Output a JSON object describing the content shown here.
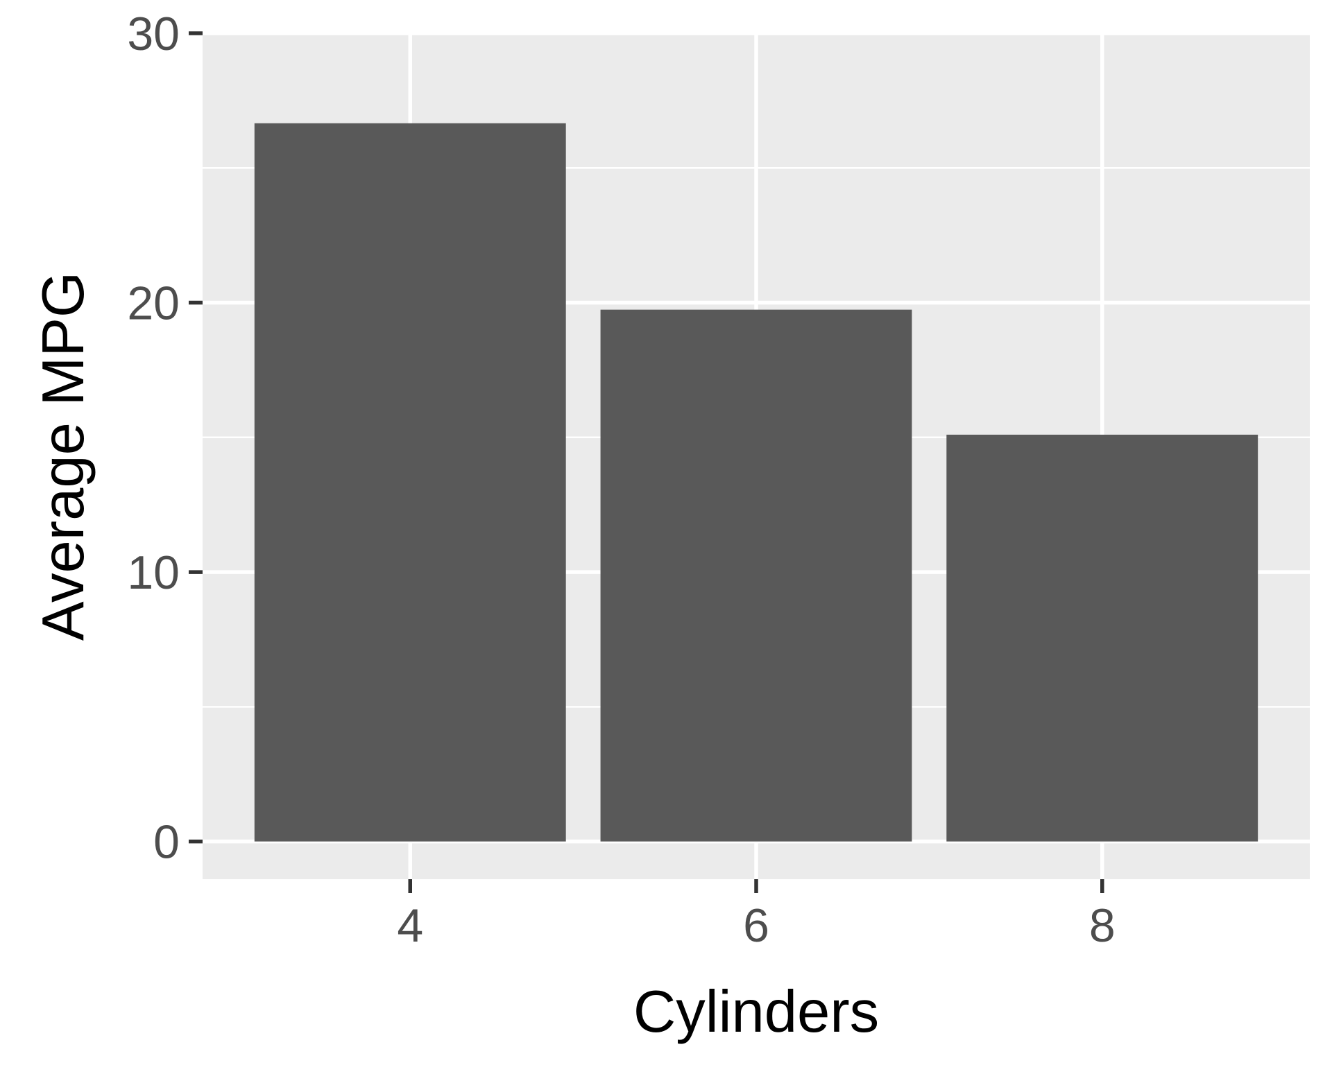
{
  "chart_data": {
    "type": "bar",
    "title": "",
    "xlabel": "Cylinders",
    "ylabel": "Average MPG",
    "categories": [
      "4",
      "6",
      "8"
    ],
    "values": [
      26.66,
      19.74,
      15.1
    ],
    "ylim": [
      -1.4,
      30
    ],
    "yticks": [
      0,
      10,
      20,
      30
    ],
    "ytick_labels": [
      "0",
      "10",
      "20",
      "30"
    ],
    "grid": true,
    "legend": "none",
    "colors": {
      "bar": "#595959",
      "panel": "#ebebeb",
      "grid": "#ffffff",
      "tick": "#333333",
      "tick_label": "#4d4d4d",
      "axis_title": "#000000"
    }
  }
}
